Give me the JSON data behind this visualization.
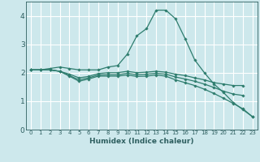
{
  "background_color": "#cde8ec",
  "grid_color": "#ffffff",
  "line_color": "#2e7d6e",
  "xlabel": "Humidex (Indice chaleur)",
  "xlim": [
    -0.5,
    23.5
  ],
  "ylim": [
    0,
    4.5
  ],
  "yticks": [
    0,
    1,
    2,
    3,
    4
  ],
  "xticks": [
    0,
    1,
    2,
    3,
    4,
    5,
    6,
    7,
    8,
    9,
    10,
    11,
    12,
    13,
    14,
    15,
    16,
    17,
    18,
    19,
    20,
    21,
    22,
    23
  ],
  "lines": [
    {
      "x": [
        0,
        1,
        2,
        3,
        4,
        5,
        6,
        7,
        8,
        9,
        10,
        11,
        12,
        13,
        14,
        15,
        16,
        17,
        18,
        19,
        20,
        21,
        22,
        23
      ],
      "y": [
        2.1,
        2.1,
        2.15,
        2.2,
        2.15,
        2.1,
        2.1,
        2.1,
        2.2,
        2.25,
        2.65,
        3.3,
        3.55,
        4.2,
        4.2,
        3.9,
        3.2,
        2.45,
        2.0,
        1.6,
        1.3,
        0.95,
        0.7,
        0.45
      ]
    },
    {
      "x": [
        0,
        1,
        2,
        3,
        4,
        5,
        6,
        7,
        8,
        9,
        10,
        11,
        12,
        13,
        14,
        15,
        16,
        17,
        18,
        19,
        20,
        21,
        22
      ],
      "y": [
        2.1,
        2.1,
        2.1,
        2.05,
        1.95,
        1.82,
        1.87,
        1.97,
        2.0,
        2.0,
        2.05,
        2.0,
        2.02,
        2.05,
        2.02,
        1.95,
        1.9,
        1.82,
        1.75,
        1.65,
        1.6,
        1.55,
        1.55
      ]
    },
    {
      "x": [
        0,
        1,
        2,
        3,
        4,
        5,
        6,
        7,
        8,
        9,
        10,
        11,
        12,
        13,
        14,
        15,
        16,
        17,
        18,
        19,
        20,
        21,
        22
      ],
      "y": [
        2.1,
        2.1,
        2.1,
        2.05,
        1.9,
        1.75,
        1.82,
        1.92,
        1.93,
        1.93,
        1.98,
        1.93,
        1.95,
        1.98,
        1.95,
        1.85,
        1.78,
        1.7,
        1.6,
        1.48,
        1.35,
        1.25,
        1.2
      ]
    },
    {
      "x": [
        0,
        1,
        2,
        3,
        4,
        5,
        6,
        7,
        8,
        9,
        10,
        11,
        12,
        13,
        14,
        15,
        16,
        17,
        18,
        19,
        20,
        21,
        22,
        23
      ],
      "y": [
        2.1,
        2.1,
        2.1,
        2.05,
        1.88,
        1.7,
        1.78,
        1.88,
        1.88,
        1.88,
        1.92,
        1.87,
        1.88,
        1.92,
        1.88,
        1.75,
        1.65,
        1.55,
        1.42,
        1.27,
        1.1,
        0.92,
        0.73,
        0.45
      ]
    }
  ]
}
